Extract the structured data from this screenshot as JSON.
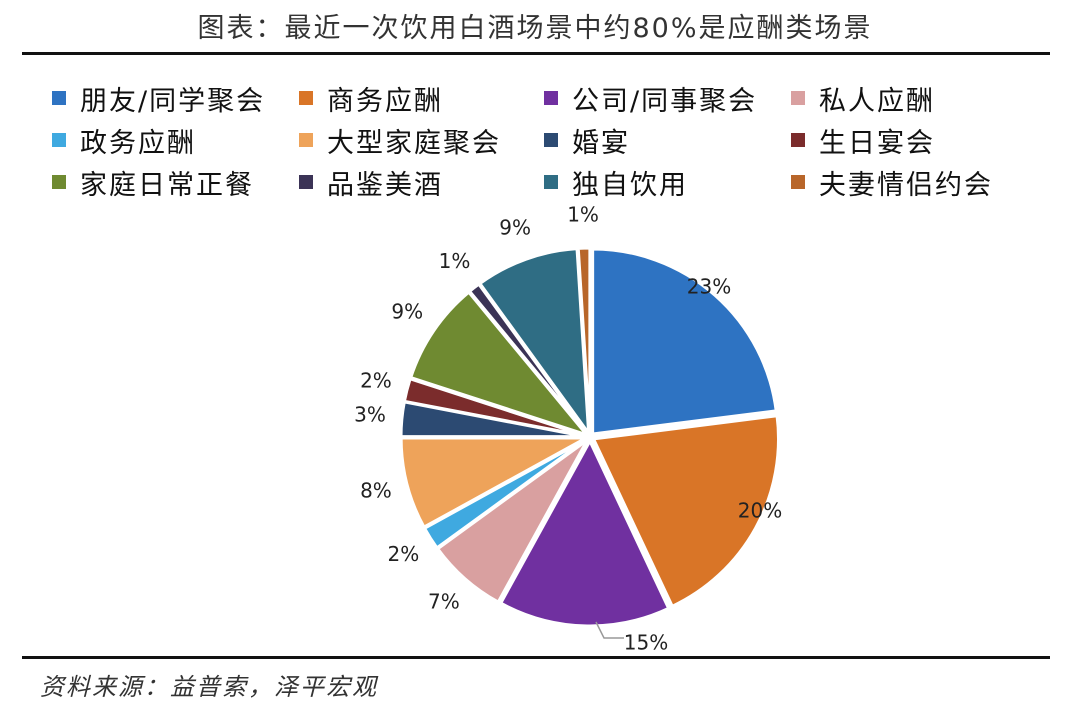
{
  "title": "图表：最近一次饮用白酒场景中约80%是应酬类场景",
  "source": "资料来源：益普索，泽平宏观",
  "chart_data": {
    "type": "pie",
    "title": "图表：最近一次饮用白酒场景中约80%是应酬类场景",
    "legend_position": "top",
    "start_angle_deg": 90,
    "direction": "clockwise",
    "slices": [
      {
        "label": "朋友/同学聚会",
        "value": 23,
        "display": "23%",
        "color": "#2e73c2"
      },
      {
        "label": "商务应酬",
        "value": 20,
        "display": "20%",
        "color": "#d97527"
      },
      {
        "label": "公司/同事聚会",
        "value": 15,
        "display": "15%",
        "color": "#7030a0"
      },
      {
        "label": "私人应酬",
        "value": 7,
        "display": "7%",
        "color": "#d9a0a0"
      },
      {
        "label": "政务应酬",
        "value": 2,
        "display": "2%",
        "color": "#3fa9e0"
      },
      {
        "label": "大型家庭聚会",
        "value": 8,
        "display": "8%",
        "color": "#eea35a"
      },
      {
        "label": "婚宴",
        "value": 3,
        "display": "3%",
        "color": "#2c4a72"
      },
      {
        "label": "生日宴会",
        "value": 2,
        "display": "2%",
        "color": "#7b2c2c"
      },
      {
        "label": "家庭日常正餐",
        "value": 9,
        "display": "9%",
        "color": "#6f8a31"
      },
      {
        "label": "品鉴美酒",
        "value": 1,
        "display": "1%",
        "color": "#3b3356"
      },
      {
        "label": "独自饮用",
        "value": 9,
        "display": "9%",
        "color": "#2f6d84"
      },
      {
        "label": "夫妻情侣约会",
        "value": 1,
        "display": "1%",
        "color": "#b8662a"
      }
    ]
  }
}
